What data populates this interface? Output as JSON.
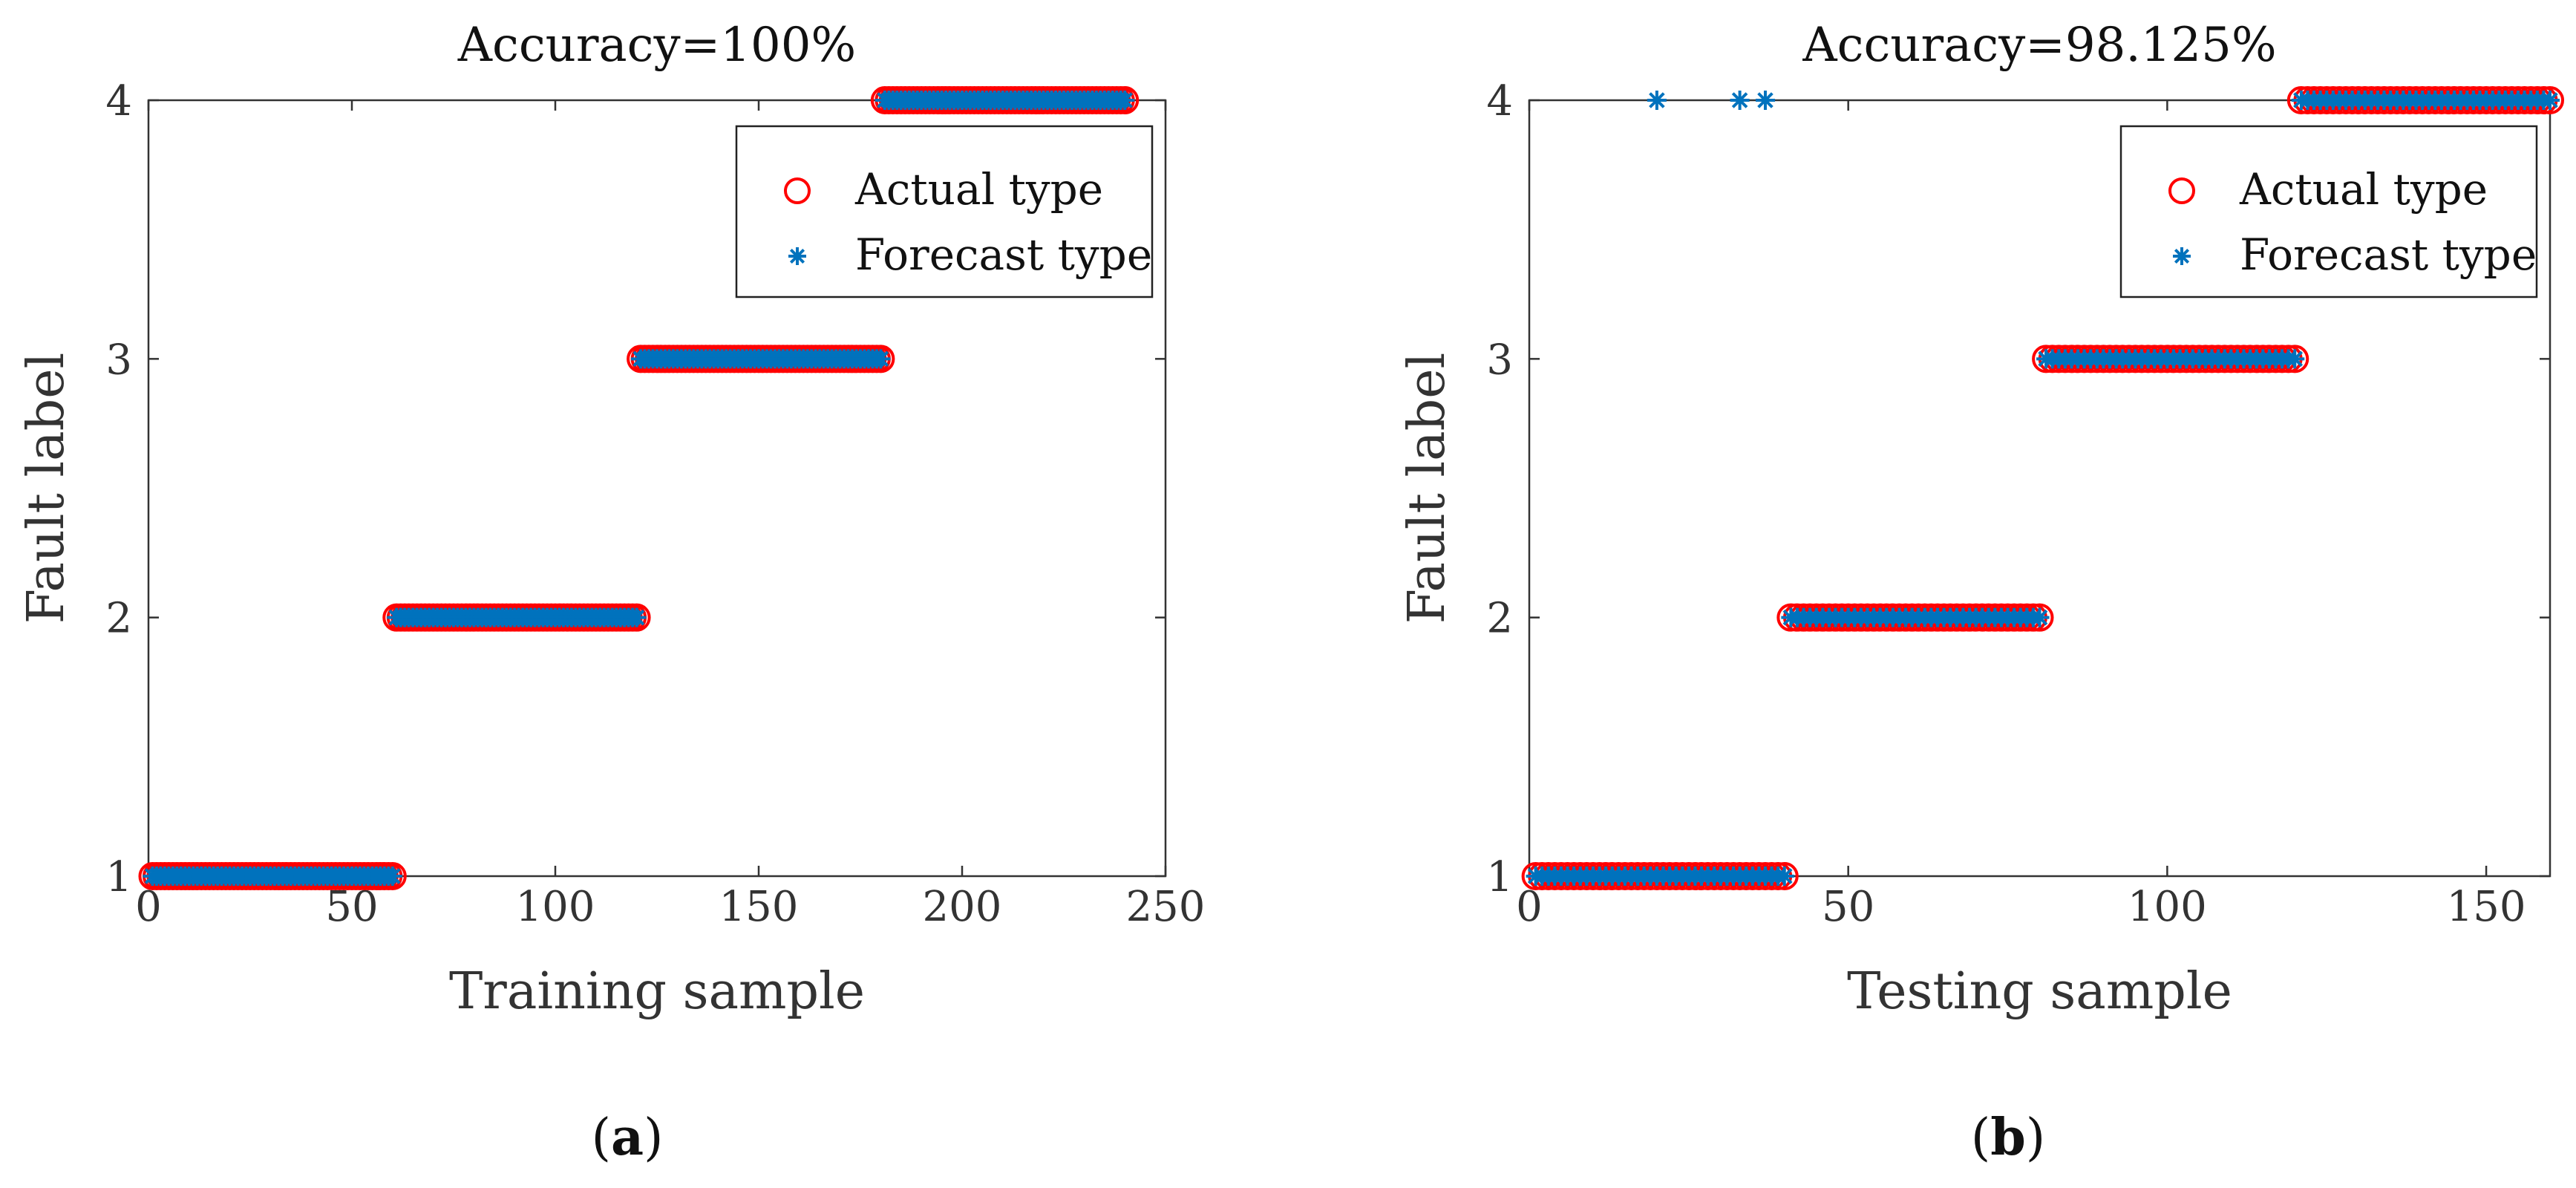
{
  "chart_data": [
    {
      "type": "scatter",
      "panel_label": "a",
      "title": "Accuracy=100%",
      "xlabel": "Training sample",
      "ylabel": "Fault label",
      "xlim": [
        0,
        250
      ],
      "ylim": [
        1,
        4
      ],
      "xticks": [
        "0",
        "50",
        "100",
        "150",
        "200",
        "250"
      ],
      "xtick_values": [
        0,
        50,
        100,
        150,
        200,
        250
      ],
      "yticks": [
        "1",
        "2",
        "3",
        "4"
      ],
      "ytick_values": [
        1,
        2,
        3,
        4
      ],
      "grid": false,
      "legend": {
        "position": "top-right",
        "entries": [
          "Actual type",
          "Forecast type"
        ]
      },
      "series": [
        {
          "name": "Actual type",
          "marker": "circle",
          "color": "#ff0000",
          "segments": [
            {
              "x_start": 1,
              "x_end": 60,
              "y": 1
            },
            {
              "x_start": 61,
              "x_end": 120,
              "y": 2
            },
            {
              "x_start": 121,
              "x_end": 180,
              "y": 3
            },
            {
              "x_start": 181,
              "x_end": 240,
              "y": 4
            }
          ]
        },
        {
          "name": "Forecast type",
          "marker": "asterisk",
          "color": "#0072bd",
          "segments": [
            {
              "x_start": 1,
              "x_end": 60,
              "y": 1
            },
            {
              "x_start": 61,
              "x_end": 120,
              "y": 2
            },
            {
              "x_start": 121,
              "x_end": 180,
              "y": 3
            },
            {
              "x_start": 181,
              "x_end": 240,
              "y": 4
            }
          ],
          "misclassified": []
        }
      ]
    },
    {
      "type": "scatter",
      "panel_label": "b",
      "title": "Accuracy=98.125%",
      "xlabel": "Testing sample",
      "ylabel": "Fault label",
      "xlim": [
        0,
        160
      ],
      "ylim": [
        1,
        4
      ],
      "xticks": [
        "0",
        "50",
        "100",
        "150"
      ],
      "xtick_values": [
        0,
        50,
        100,
        150
      ],
      "yticks": [
        "1",
        "2",
        "3",
        "4"
      ],
      "ytick_values": [
        1,
        2,
        3,
        4
      ],
      "grid": false,
      "legend": {
        "position": "top-right",
        "entries": [
          "Actual type",
          "Forecast type"
        ]
      },
      "series": [
        {
          "name": "Actual type",
          "marker": "circle",
          "color": "#ff0000",
          "segments": [
            {
              "x_start": 1,
              "x_end": 40,
              "y": 1
            },
            {
              "x_start": 41,
              "x_end": 80,
              "y": 2
            },
            {
              "x_start": 81,
              "x_end": 120,
              "y": 3
            },
            {
              "x_start": 121,
              "x_end": 160,
              "y": 4
            }
          ]
        },
        {
          "name": "Forecast type",
          "marker": "asterisk",
          "color": "#0072bd",
          "segments": [
            {
              "x_start": 1,
              "x_end": 40,
              "y": 1
            },
            {
              "x_start": 41,
              "x_end": 80,
              "y": 2
            },
            {
              "x_start": 81,
              "x_end": 120,
              "y": 3
            },
            {
              "x_start": 121,
              "x_end": 160,
              "y": 4
            }
          ],
          "misclassified": [
            {
              "x": 20,
              "y": 4
            },
            {
              "x": 33,
              "y": 4
            },
            {
              "x": 37,
              "y": 4
            }
          ]
        }
      ]
    }
  ]
}
